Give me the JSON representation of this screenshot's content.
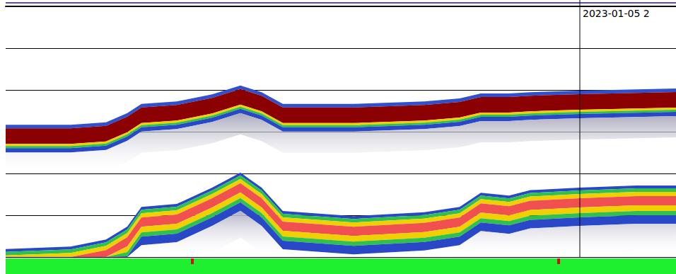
{
  "chart_data": {
    "type": "echogram",
    "x": [
      0,
      92,
      142,
      172,
      192,
      242,
      292,
      332,
      362,
      392,
      492,
      592,
      642,
      672,
      712,
      742,
      812,
      892,
      948
    ],
    "series": [
      {
        "color": "#8b0000",
        "values": [
          2.92,
          2.92,
          2.86,
          2.64,
          2.42,
          2.36,
          2.19,
          1.98,
          2.14,
          2.42,
          2.42,
          2.36,
          2.29,
          2.17,
          2.17,
          2.14,
          2.1,
          2.07,
          2.05
        ]
      },
      {
        "color": "#f05050",
        "values": [
          5.81,
          5.75,
          5.58,
          5.27,
          4.8,
          4.73,
          4.34,
          3.98,
          4.34,
          4.9,
          5.02,
          4.93,
          4.8,
          4.46,
          4.53,
          4.4,
          4.34,
          4.29,
          4.29
        ]
      }
    ],
    "xlim": [
      0,
      948
    ],
    "ylim": [
      0,
      6
    ],
    "yticks": [
      0,
      1,
      2,
      3,
      4,
      5,
      6
    ],
    "grid": true,
    "tick_labels": false,
    "annotations": [
      {
        "x": 812,
        "text": "2023-01-05 2"
      }
    ]
  }
}
